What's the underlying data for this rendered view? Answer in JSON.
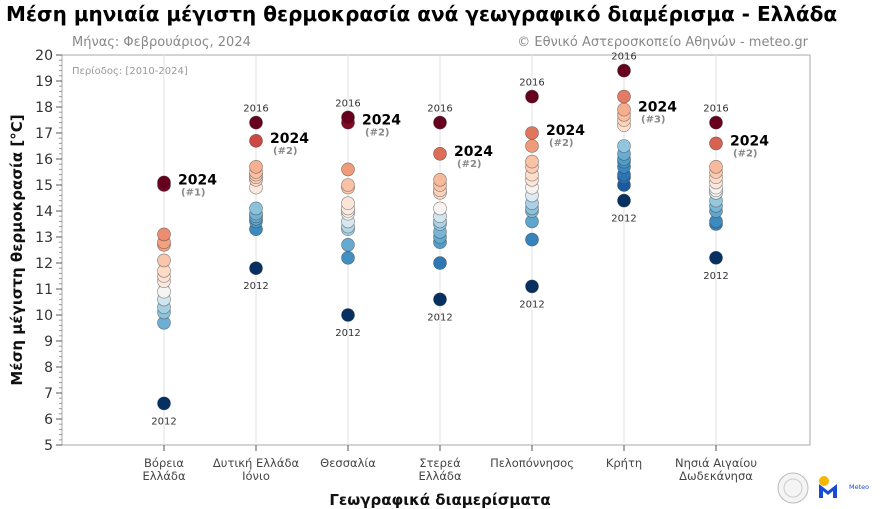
{
  "chart_data": {
    "type": "scatter",
    "title": "Μέση μηνιαία μέγιστη θερμοκρασία ανά γεωγραφικό διαμέρισμα - Ελλάδα",
    "subtitle_left": "Μήνας: Φεβρουάριος, 2024",
    "subtitle_right": "© Εθνικό Αστεροσκοπείο Αθηνών - meteo.gr",
    "period_note": "Περίοδος: [2010-2024]",
    "xlabel": "Γεωγραφικά διαμερίσματα",
    "ylabel": "Μέση μέγιστη θερμοκρασία [°C]",
    "ylim": [
      5,
      20
    ],
    "yticks": [
      "5",
      "6",
      "7",
      "8",
      "9",
      "10",
      "11",
      "12",
      "13",
      "14",
      "15",
      "16",
      "17",
      "18",
      "19",
      "20"
    ],
    "grid": "vertical",
    "colormap": "RdBu_r",
    "categories": [
      {
        "label": [
          "Βόρεια",
          "Ελλάδα"
        ],
        "values": [
          15.1,
          15.0,
          13.1,
          12.8,
          12.7,
          12.1,
          11.7,
          11.5,
          11.3,
          10.9,
          10.6,
          10.3,
          10.1,
          9.7,
          6.6
        ],
        "max_year": "",
        "min_year": "2012",
        "min_value": 6.6,
        "highlight_year": "2024",
        "highlight_value": 15.1,
        "highlight_rank": "(#1)"
      },
      {
        "label": [
          "Δυτική Ελλάδα",
          "Ιόνιο"
        ],
        "values": [
          17.4,
          16.7,
          15.7,
          15.5,
          15.4,
          15.3,
          15.2,
          14.9,
          14.1,
          13.9,
          13.8,
          13.7,
          13.6,
          13.3,
          11.8
        ],
        "max_year": "2016",
        "max_value": 17.4,
        "min_year": "2012",
        "min_value": 11.8,
        "highlight_year": "2024",
        "highlight_value": 16.7,
        "highlight_rank": "(#2)"
      },
      {
        "label": [
          "Θεσσαλία"
        ],
        "values": [
          17.6,
          17.4,
          15.6,
          15.0,
          14.9,
          14.3,
          14.1,
          14.0,
          13.9,
          13.6,
          13.4,
          13.3,
          12.7,
          12.2,
          10.0
        ],
        "max_year": "2016",
        "max_value": 17.6,
        "min_year": "2012",
        "min_value": 10.0,
        "highlight_year": "2024",
        "highlight_value": 17.4,
        "highlight_rank": "(#2)"
      },
      {
        "label": [
          "Στερεά",
          "Ελλάδα"
        ],
        "values": [
          17.4,
          16.2,
          15.2,
          15.0,
          14.8,
          14.7,
          14.1,
          13.8,
          13.6,
          13.5,
          13.2,
          13.0,
          12.8,
          12.0,
          10.6
        ],
        "max_year": "2016",
        "max_value": 17.4,
        "min_year": "2012",
        "min_value": 10.6,
        "highlight_year": "2024",
        "highlight_value": 16.2,
        "highlight_rank": "(#2)"
      },
      {
        "label": [
          "Πελοπόννησος"
        ],
        "values": [
          18.4,
          17.0,
          16.5,
          15.9,
          15.7,
          15.4,
          15.2,
          14.9,
          14.6,
          14.3,
          14.1,
          14.0,
          13.6,
          12.9,
          11.1
        ],
        "max_year": "2016",
        "max_value": 18.4,
        "min_year": "2012",
        "min_value": 11.1,
        "highlight_year": "2024",
        "highlight_value": 17.0,
        "highlight_rank": "(#2)"
      },
      {
        "label": [
          "Κρήτη"
        ],
        "values": [
          19.4,
          18.4,
          17.9,
          17.7,
          17.5,
          17.3,
          16.5,
          16.2,
          16.0,
          15.9,
          15.7,
          15.4,
          15.3,
          15.0,
          14.4
        ],
        "max_year": "2016",
        "max_value": 19.4,
        "min_year": "2012",
        "min_value": 14.4,
        "highlight_year": "2024",
        "highlight_value": 17.9,
        "highlight_rank": "(#3)"
      },
      {
        "label": [
          "Νησιά Αιγαίου",
          "Δωδεκάνησα"
        ],
        "values": [
          17.4,
          16.6,
          15.7,
          15.5,
          15.3,
          15.1,
          14.9,
          14.8,
          14.7,
          14.4,
          14.2,
          14.0,
          13.6,
          13.5,
          12.2
        ],
        "max_year": "2016",
        "max_value": 17.4,
        "min_year": "2012",
        "min_value": 12.2,
        "highlight_year": "2024",
        "highlight_value": 16.6,
        "highlight_rank": "(#2)"
      }
    ]
  },
  "logos": {
    "meteo_text": "Meteo"
  }
}
